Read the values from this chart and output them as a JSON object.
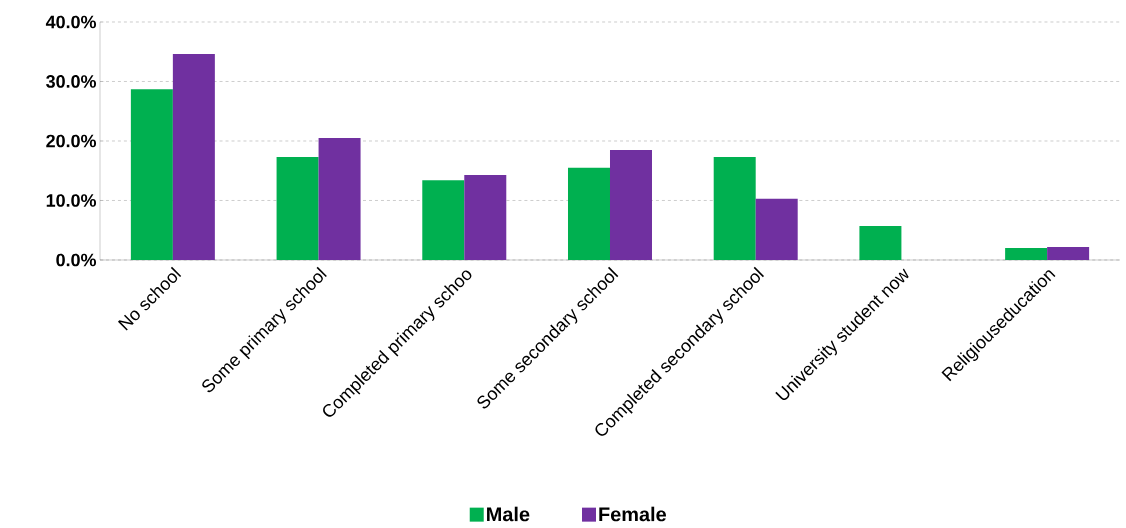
{
  "chart_data": {
    "type": "bar",
    "categories": [
      "No school",
      "Some primary school",
      "Completed primary schoo",
      "Some secondary school",
      "Completed secondary school",
      "University student now",
      "Religiouseducation"
    ],
    "series": [
      {
        "name": "Male",
        "color": "#00b050",
        "values": [
          28.7,
          17.3,
          13.4,
          15.5,
          17.3,
          5.7,
          2.0
        ]
      },
      {
        "name": "Female",
        "color": "#7030a0",
        "values": [
          34.6,
          20.5,
          14.3,
          18.5,
          10.3,
          null,
          2.2
        ]
      }
    ],
    "ylim": [
      0,
      40
    ],
    "yticks": [
      {
        "value": 0,
        "label": "0.0%"
      },
      {
        "value": 10,
        "label": "10.0%"
      },
      {
        "value": 20,
        "label": "20.0%"
      },
      {
        "value": 30,
        "label": "30.0%"
      },
      {
        "value": 40,
        "label": "40.0%"
      }
    ],
    "grid": "y",
    "legend": "bottom"
  }
}
